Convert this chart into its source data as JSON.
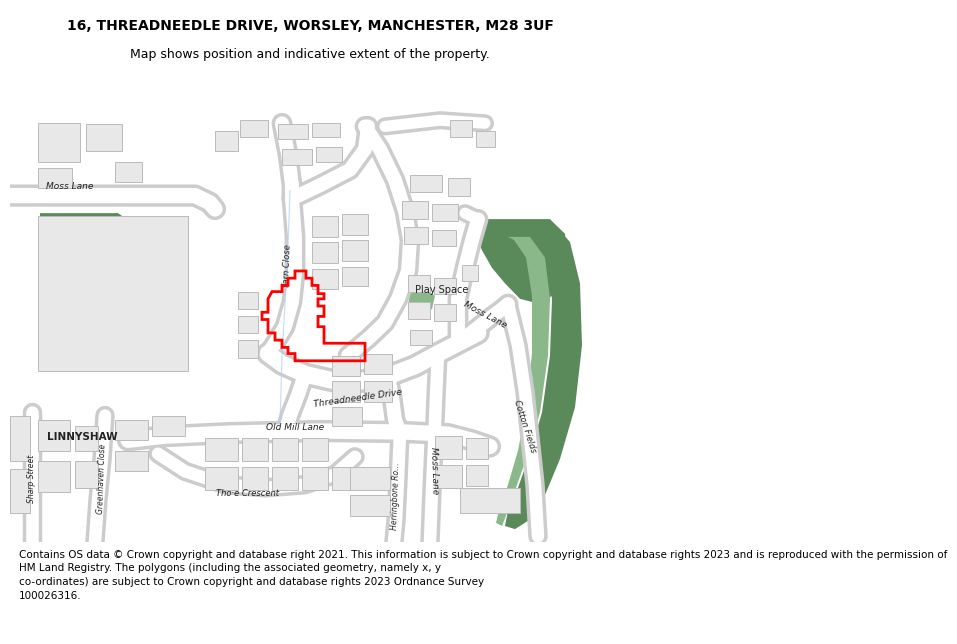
{
  "title": "16, THREADNEEDLE DRIVE, WORSLEY, MANCHESTER, M28 3UF",
  "subtitle": "Map shows position and indicative extent of the property.",
  "footer_line1": "Contains OS data © Crown copyright and database right 2021. This information is subject to Crown copyright and database rights 2023 and is reproduced with the permission of",
  "footer_line2": "HM Land Registry. The polygons (including the associated geometry, namely x, y",
  "footer_line3": "co-ordinates) are subject to Crown copyright and database rights 2023 Ordnance Survey",
  "footer_line4": "100026316.",
  "map_bg": "#ffffff",
  "road_color": "#ffffff",
  "road_border_color": "#cccccc",
  "building_color": "#e8e8e8",
  "building_border_color": "#bbbbbb",
  "green_color": "#5a8a5a",
  "green_light_color": "#8ab88a",
  "property_color": "#ff0000",
  "title_fontsize": 10,
  "subtitle_fontsize": 9,
  "footer_fontsize": 7.5
}
